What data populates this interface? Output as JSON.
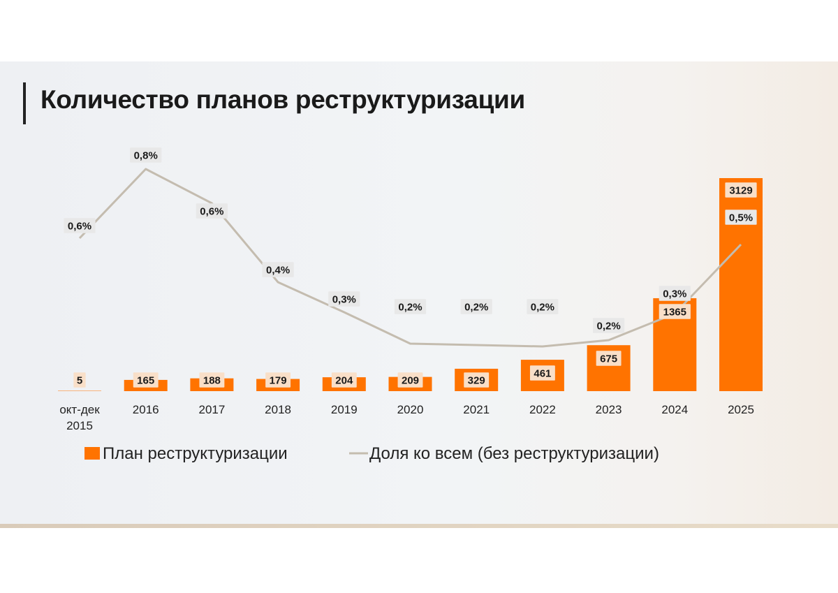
{
  "slide": {
    "title": "Количество планов реструктуризации"
  },
  "chart_data": {
    "type": "bar",
    "title": "Количество планов реструктуризации",
    "categories": [
      "окт-дек\n2015",
      "2016",
      "2017",
      "2018",
      "2019",
      "2020",
      "2021",
      "2022",
      "2023",
      "2024",
      "2025"
    ],
    "series": [
      {
        "name": "План реструктуризации",
        "type": "bar",
        "values": [
          5,
          165,
          188,
          179,
          204,
          209,
          329,
          461,
          675,
          1365,
          3129
        ],
        "labels": [
          "5",
          "165",
          "188",
          "179",
          "204",
          "209",
          "329",
          "461",
          "675",
          "1365",
          "3129"
        ]
      },
      {
        "name": "Доля ко всем (без реструктуризации)",
        "type": "line",
        "values": [
          0.6,
          0.8,
          0.6,
          0.4,
          0.3,
          0.2,
          0.2,
          0.2,
          0.2,
          0.3,
          0.5
        ],
        "labels": [
          "0,6%",
          "0,8%",
          "0,6%",
          "0,4%",
          "0,3%",
          "0,2%",
          "0,2%",
          "0,2%",
          "0,2%",
          "0,3%",
          "0,5%"
        ]
      }
    ],
    "legend": "bottom",
    "grid": false,
    "colors": {
      "bar": "#ff7300",
      "line": "#c4bcaf",
      "bar_label_bg": "#f9dfc8",
      "line_label_bg": "#e8e8e8"
    }
  }
}
